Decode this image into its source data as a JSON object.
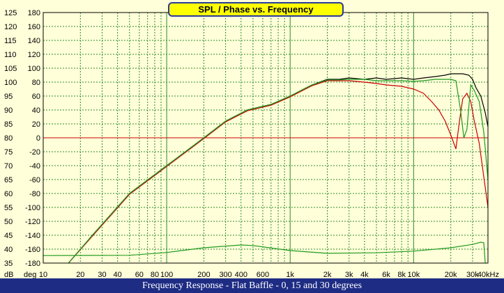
{
  "title": "SPL / Phase vs. Frequency",
  "caption": "Frequency Response - Flat Baffle - 0, 15 and 30 degrees",
  "colors": {
    "background": "#ffffd9",
    "grid": "#2e8b2e",
    "zero_line": "#cc0000",
    "caption_bg": "#1e2c84",
    "title_bg": "#ffff00"
  },
  "chart_data": {
    "type": "line",
    "x_scale": "log",
    "xlim": [
      10,
      40000
    ],
    "ylim_db": [
      35,
      125
    ],
    "ylim_deg": [
      -180,
      180
    ],
    "db_unit": "dB",
    "deg_unit": "deg",
    "db_ticks": [
      35,
      40,
      45,
      50,
      55,
      60,
      65,
      70,
      75,
      80,
      85,
      90,
      95,
      100,
      105,
      110,
      115,
      120,
      125
    ],
    "deg_ticks": [
      "-180",
      "-160",
      "-140",
      "-120",
      "-100",
      "-80",
      "-60",
      "-40",
      "-20",
      "0",
      "20",
      "40",
      "60",
      "80",
      "100",
      "120",
      "140",
      "160",
      "180"
    ],
    "x_ticks": [
      {
        "f": 10,
        "label": "10"
      },
      {
        "f": 20,
        "label": "20"
      },
      {
        "f": 30,
        "label": "30"
      },
      {
        "f": 40,
        "label": "40"
      },
      {
        "f": 60,
        "label": "60"
      },
      {
        "f": 80,
        "label": "80"
      },
      {
        "f": 100,
        "label": "100"
      },
      {
        "f": 200,
        "label": "200"
      },
      {
        "f": 300,
        "label": "300"
      },
      {
        "f": 400,
        "label": "400"
      },
      {
        "f": 600,
        "label": "600"
      },
      {
        "f": 1000,
        "label": "1k"
      },
      {
        "f": 2000,
        "label": "2k"
      },
      {
        "f": 3000,
        "label": "3k"
      },
      {
        "f": 4000,
        "label": "4k"
      },
      {
        "f": 6000,
        "label": "6k"
      },
      {
        "f": 8000,
        "label": "8k"
      },
      {
        "f": 10000,
        "label": "10k"
      },
      {
        "f": 20000,
        "label": "20k"
      },
      {
        "f": 30000,
        "label": "30k"
      },
      {
        "f": 40000,
        "label": "40kHz"
      }
    ],
    "zero_line_db": 80,
    "series": [
      {
        "color": "#000000",
        "points": [
          [
            16,
            35
          ],
          [
            25,
            45
          ],
          [
            50,
            60
          ],
          [
            100,
            70
          ],
          [
            200,
            80
          ],
          [
            300,
            86
          ],
          [
            450,
            90
          ],
          [
            700,
            92
          ],
          [
            1000,
            95
          ],
          [
            1500,
            99
          ],
          [
            2000,
            101
          ],
          [
            2500,
            101
          ],
          [
            3000,
            101.5
          ],
          [
            4000,
            101
          ],
          [
            5000,
            101.5
          ],
          [
            6000,
            101
          ],
          [
            8000,
            101.5
          ],
          [
            10000,
            101
          ],
          [
            12000,
            101.5
          ],
          [
            15000,
            102
          ],
          [
            18000,
            102.5
          ],
          [
            20000,
            103
          ],
          [
            25000,
            103
          ],
          [
            28000,
            102.5
          ],
          [
            30000,
            101
          ],
          [
            32000,
            98
          ],
          [
            35000,
            95
          ],
          [
            38000,
            89
          ],
          [
            40000,
            84
          ]
        ]
      },
      {
        "color": "#cc0000",
        "points": [
          [
            16,
            35
          ],
          [
            25,
            44.7
          ],
          [
            50,
            59.7
          ],
          [
            100,
            69.7
          ],
          [
            200,
            79.7
          ],
          [
            300,
            85.7
          ],
          [
            450,
            89.7
          ],
          [
            700,
            91.7
          ],
          [
            1000,
            94.7
          ],
          [
            1500,
            98.7
          ],
          [
            2000,
            100.5
          ],
          [
            2500,
            100.5
          ],
          [
            3000,
            100.5
          ],
          [
            4000,
            100
          ],
          [
            5000,
            99.5
          ],
          [
            6000,
            99
          ],
          [
            8000,
            98.5
          ],
          [
            10000,
            97.5
          ],
          [
            12000,
            96
          ],
          [
            14000,
            93
          ],
          [
            16000,
            90
          ],
          [
            18000,
            86
          ],
          [
            20000,
            81
          ],
          [
            22000,
            76
          ],
          [
            23500,
            86
          ],
          [
            25000,
            94
          ],
          [
            27000,
            96
          ],
          [
            29000,
            93
          ],
          [
            31000,
            86
          ],
          [
            34000,
            78
          ],
          [
            37000,
            66
          ],
          [
            40000,
            55
          ]
        ]
      },
      {
        "color": "#1e9a1e",
        "points": [
          [
            16,
            35
          ],
          [
            25,
            45
          ],
          [
            50,
            60
          ],
          [
            100,
            70
          ],
          [
            200,
            80
          ],
          [
            300,
            86
          ],
          [
            450,
            90
          ],
          [
            700,
            92
          ],
          [
            1000,
            95
          ],
          [
            1500,
            99
          ],
          [
            2000,
            100.8
          ],
          [
            2500,
            100.8
          ],
          [
            3000,
            101
          ],
          [
            4000,
            101
          ],
          [
            5000,
            100.5
          ],
          [
            6000,
            100.5
          ],
          [
            8000,
            100.5
          ],
          [
            10000,
            100.3
          ],
          [
            12000,
            100.5
          ],
          [
            15000,
            101
          ],
          [
            18000,
            101
          ],
          [
            20000,
            101
          ],
          [
            22000,
            100.5
          ],
          [
            24000,
            90
          ],
          [
            25500,
            80
          ],
          [
            27000,
            83
          ],
          [
            29000,
            99
          ],
          [
            31000,
            97
          ],
          [
            34000,
            93
          ],
          [
            37000,
            82
          ],
          [
            40000,
            65
          ]
        ]
      },
      {
        "color": "#1e9a1e",
        "points": [
          [
            10,
            37.7
          ],
          [
            50,
            37.8
          ],
          [
            100,
            38.8
          ],
          [
            200,
            40.5
          ],
          [
            400,
            41.5
          ],
          [
            500,
            41.3
          ],
          [
            1000,
            39.5
          ],
          [
            2000,
            38.5
          ],
          [
            5000,
            38.7
          ],
          [
            10000,
            39.3
          ],
          [
            20000,
            40.5
          ],
          [
            30000,
            41.7
          ],
          [
            35000,
            42.5
          ],
          [
            37000,
            42.3
          ],
          [
            38000,
            35
          ]
        ]
      }
    ]
  }
}
